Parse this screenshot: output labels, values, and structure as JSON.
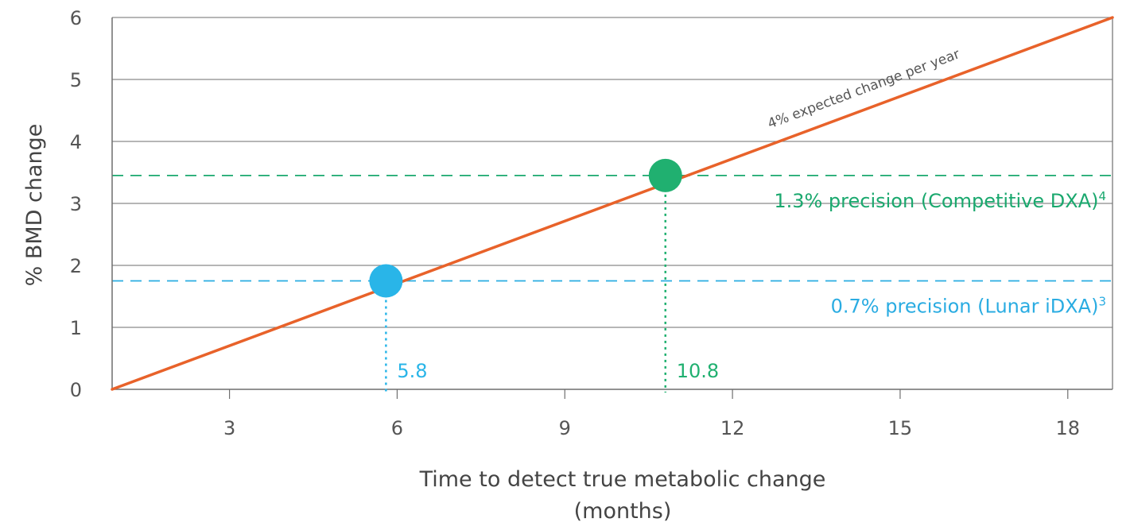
{
  "chart_data": {
    "type": "line",
    "title": "",
    "xlabel_line1": "Time to detect true metabolic change",
    "xlabel_line2": "(months)",
    "ylabel": "% BMD change",
    "xlim": [
      0.9,
      18.8
    ],
    "ylim": [
      0,
      6
    ],
    "x_ticks": [
      3,
      6,
      9,
      12,
      15,
      18
    ],
    "y_ticks": [
      0,
      1,
      2,
      3,
      4,
      5,
      6
    ],
    "grid": "horizontal",
    "series": [
      {
        "name": "",
        "x": [
          0.9,
          18.8
        ],
        "y": [
          0,
          6
        ],
        "color": "#e8622a"
      }
    ],
    "line_label": "4% expected change per year",
    "precision_lines": [
      {
        "label": "1.3% precision (Competitive DXA)",
        "superscript": "4",
        "y": 3.45,
        "color": "#1aa86e"
      },
      {
        "label": "0.7% precision (Lunar iDXA)",
        "superscript": "3",
        "y": 1.75,
        "color": "#2aace2"
      }
    ],
    "markers": [
      {
        "x": 5.8,
        "y": 1.75,
        "label": "5.8",
        "color": "#29b5e8"
      },
      {
        "x": 10.8,
        "y": 3.45,
        "label": "10.8",
        "color": "#20b070"
      }
    ]
  }
}
